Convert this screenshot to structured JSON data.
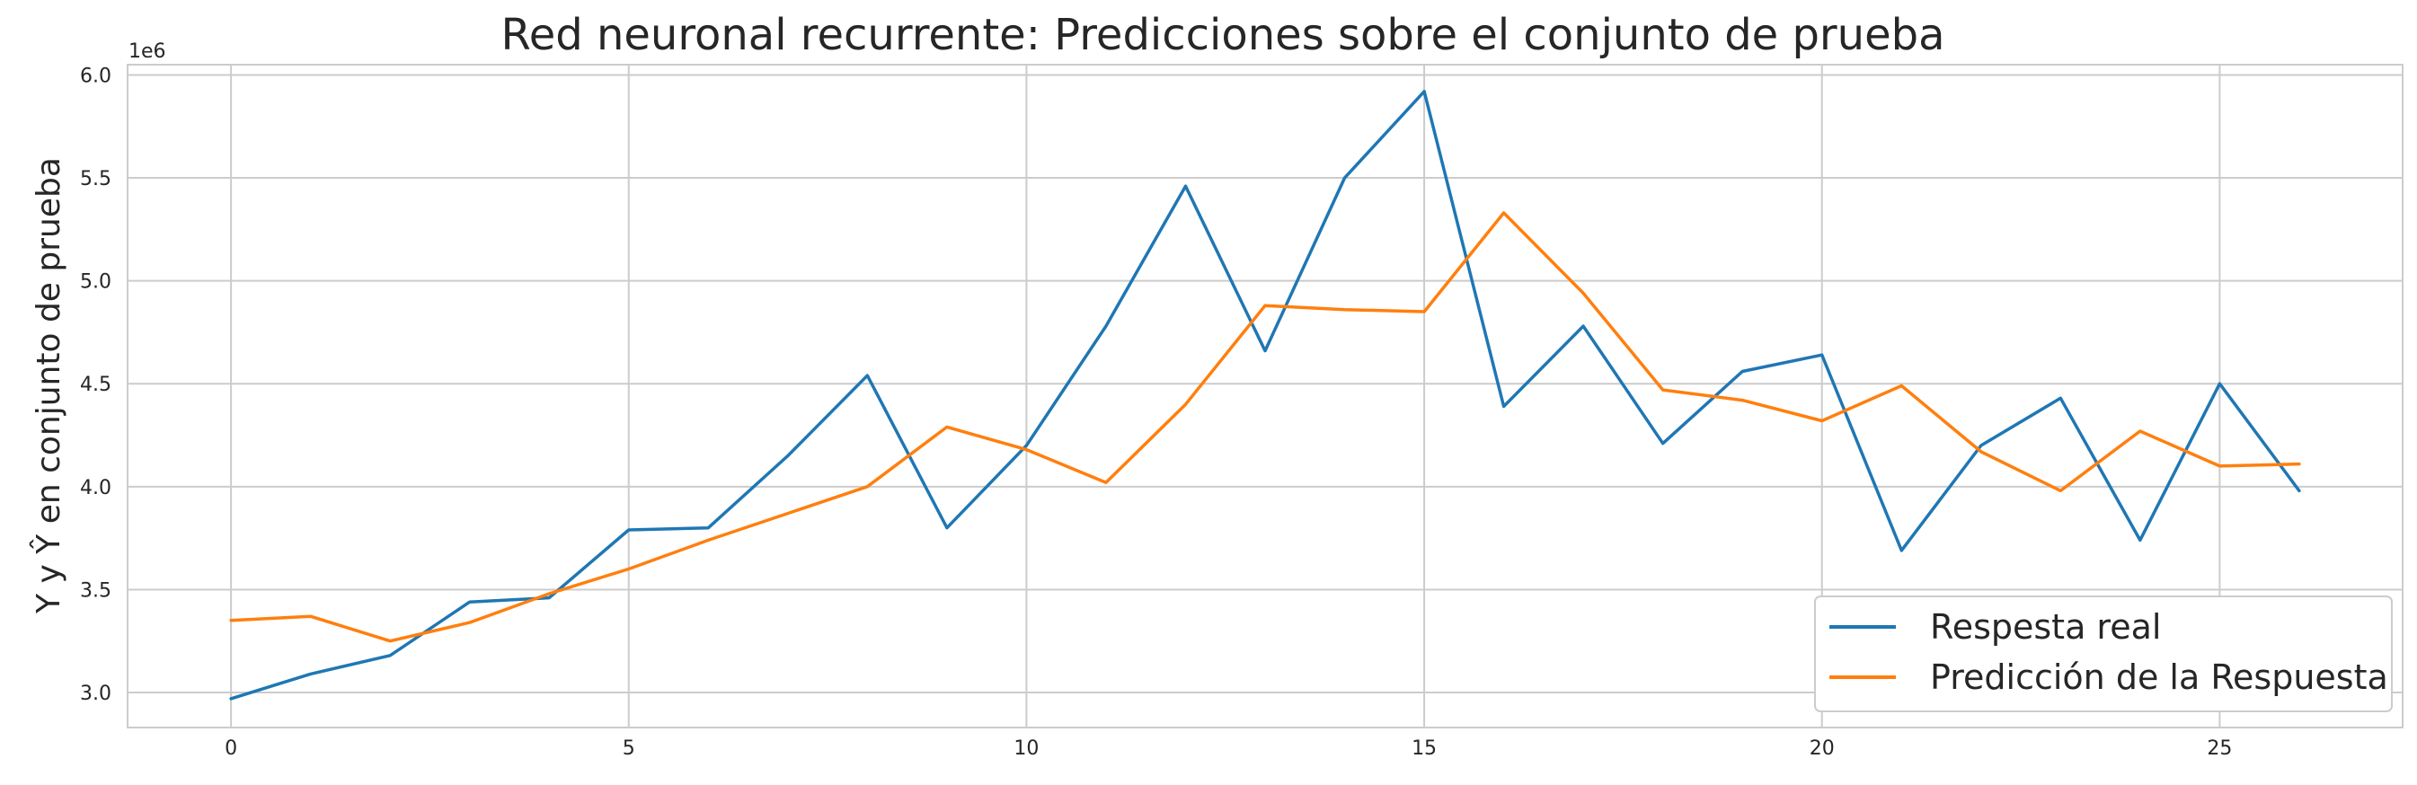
{
  "chart_data": {
    "type": "line",
    "title": "Red neuronal recurrente: Predicciones sobre el conjunto de prueba",
    "xlabel": "",
    "ylabel": "Y y Ŷ en conjunto de prueba",
    "y_offset_label": "1e6",
    "xlim": [
      -1.3,
      27.3
    ],
    "ylim": [
      2.83,
      6.05
    ],
    "y_scale_multiplier": 1000000,
    "x_ticks": [
      0,
      5,
      10,
      15,
      20,
      25
    ],
    "y_ticks": [
      3.0,
      3.5,
      4.0,
      4.5,
      5.0,
      5.5,
      6.0
    ],
    "x_tick_labels": [
      "0",
      "5",
      "10",
      "15",
      "20",
      "25"
    ],
    "y_tick_labels": [
      "3.0",
      "3.5",
      "4.0",
      "4.5",
      "5.0",
      "5.5",
      "6.0"
    ],
    "grid": true,
    "legend_position": "lower-right",
    "x": [
      0,
      1,
      2,
      3,
      4,
      5,
      6,
      7,
      8,
      9,
      10,
      11,
      12,
      13,
      14,
      15,
      16,
      17,
      18,
      19,
      20,
      21,
      22,
      23,
      24,
      25,
      26
    ],
    "series": [
      {
        "name": "Respesta real",
        "color": "#1f77b4",
        "values": [
          2.97,
          3.09,
          3.18,
          3.44,
          3.46,
          3.79,
          3.8,
          4.15,
          4.54,
          3.8,
          4.2,
          4.78,
          5.46,
          4.66,
          5.5,
          5.92,
          4.39,
          4.78,
          4.21,
          4.56,
          4.64,
          3.69,
          4.2,
          4.43,
          3.74,
          4.5,
          3.98
        ]
      },
      {
        "name": "Predicción de la Respuesta",
        "color": "#ff7f0e",
        "values": [
          3.35,
          3.37,
          3.25,
          3.34,
          3.48,
          3.6,
          3.74,
          3.87,
          4.0,
          4.29,
          4.18,
          4.02,
          4.4,
          4.88,
          4.86,
          4.85,
          5.33,
          4.94,
          4.47,
          4.42,
          4.32,
          4.49,
          4.17,
          3.98,
          4.27,
          4.1,
          4.11
        ]
      }
    ]
  }
}
